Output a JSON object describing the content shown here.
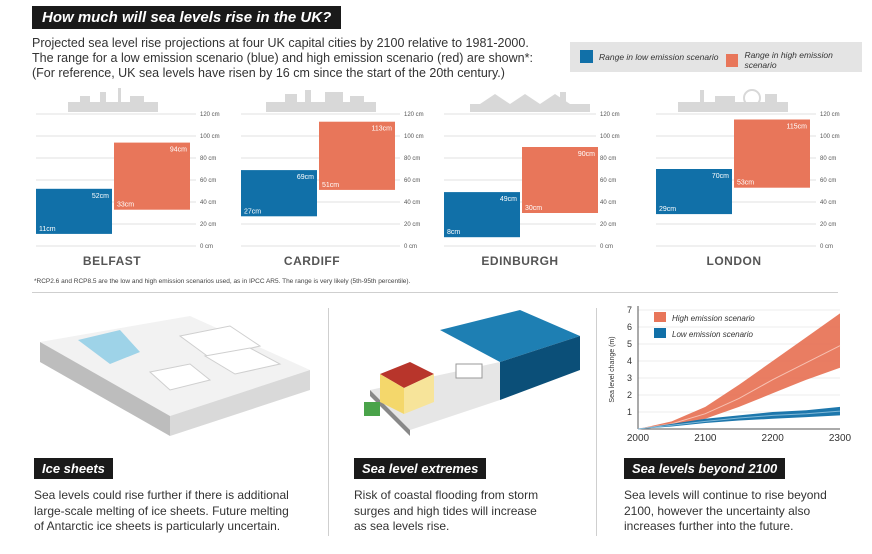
{
  "title": "How much will sea levels rise in the UK?",
  "intro": {
    "line1": "Projected sea level rise projections at four UK capital cities by 2100 relative to 1981-2000.",
    "line2": "The range for a low emission scenario (blue) and high emission scenario (red) are shown*:",
    "line3": "(For reference, UK sea levels have risen by 16 cm since the start of the 20th century.)"
  },
  "legend": {
    "low_label": "Range in low emission scenario",
    "high_label": "Range in high emission scenario"
  },
  "colors": {
    "low": "#1170a8",
    "high": "#e8765a",
    "dark": "#1a1a1a"
  },
  "chart_data": [
    {
      "type": "bar",
      "subtype": "floating-range",
      "title": "Projected sea level rise by 2100 relative to 1981-2000",
      "ylabel": "cm",
      "ylim": [
        0,
        120
      ],
      "y_ticks": [
        "0 cm",
        "20 cm",
        "40 cm",
        "60 cm",
        "80 cm",
        "100 cm",
        "120 cm"
      ],
      "categories": [
        "BELFAST",
        "CARDIFF",
        "EDINBURGH",
        "LONDON"
      ],
      "series": [
        {
          "name": "Range in low emission scenario",
          "low": [
            11,
            27,
            8,
            29
          ],
          "high": [
            52,
            69,
            49,
            70
          ],
          "low_labels": [
            "11cm",
            "27cm",
            "8cm",
            "29cm"
          ],
          "high_labels": [
            "52cm",
            "69cm",
            "49cm",
            "70cm"
          ]
        },
        {
          "name": "Range in high emission scenario",
          "low": [
            33,
            51,
            30,
            53
          ],
          "high": [
            94,
            113,
            90,
            115
          ],
          "low_labels": [
            "33cm",
            "51cm",
            "30cm",
            "53cm"
          ],
          "high_labels": [
            "94cm",
            "113cm",
            "90cm",
            "115cm"
          ]
        }
      ]
    },
    {
      "type": "area",
      "title": "Sea levels beyond 2100",
      "xlabel": "",
      "ylabel": "Sea level change (m)",
      "xlim": [
        2000,
        2300
      ],
      "ylim": [
        0,
        7
      ],
      "x_ticks": [
        2000,
        2100,
        2200,
        2300
      ],
      "y_ticks": [
        1,
        2,
        3,
        4,
        5,
        6,
        7
      ],
      "x": [
        2000,
        2050,
        2100,
        2150,
        2200,
        2250,
        2300
      ],
      "series": [
        {
          "name": "High emission scenario",
          "lower": [
            0,
            0.2,
            0.6,
            1.3,
            2.1,
            2.9,
            3.6
          ],
          "upper": [
            0,
            0.45,
            1.3,
            2.6,
            4.0,
            5.4,
            6.8
          ],
          "central": [
            0,
            0.3,
            0.9,
            1.8,
            2.9,
            3.9,
            4.9
          ]
        },
        {
          "name": "Low emission scenario",
          "lower": [
            0,
            0.15,
            0.35,
            0.5,
            0.6,
            0.7,
            0.8
          ],
          "upper": [
            0,
            0.3,
            0.6,
            0.8,
            1.0,
            1.1,
            1.3
          ],
          "central": [
            0,
            0.22,
            0.45,
            0.65,
            0.8,
            0.9,
            1.05
          ]
        }
      ],
      "legend_position": "top-left"
    }
  ],
  "footnote": "*RCP2.6 and RCP8.5 are the low and high emission scenarios used, as in IPCC AR5. The range is very likely (5th-95th percentile).",
  "panels": [
    {
      "label": "Ice sheets",
      "text": [
        "Sea levels could rise further if there is additional",
        "large-scale melting of ice sheets. Future melting",
        "of Antarctic ice sheets is particularly uncertain."
      ]
    },
    {
      "label": "Sea level extremes",
      "text": [
        "Risk of coastal flooding from storm",
        "surges and high tides will increase",
        "as sea levels rise."
      ]
    },
    {
      "label": "Sea levels beyond 2100",
      "text": [
        "Sea levels will continue to rise beyond",
        "2100, however the uncertainty also",
        "increases further into the future."
      ]
    }
  ]
}
